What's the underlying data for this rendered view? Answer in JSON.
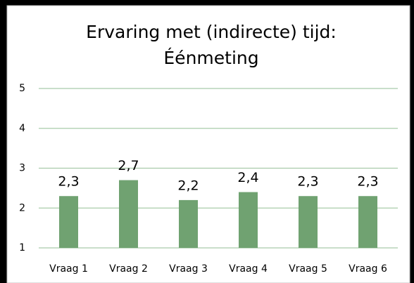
{
  "chart_data": {
    "type": "bar",
    "title": [
      "Ervaring met (indirecte) tijd:",
      "Éénmeting"
    ],
    "categories": [
      "Vraag 1",
      "Vraag 2",
      "Vraag 3",
      "Vraag 4",
      "Vraag 5",
      "Vraag 6"
    ],
    "values": [
      2.3,
      2.7,
      2.2,
      2.4,
      2.3,
      2.3
    ],
    "value_labels": [
      "2,3",
      "2,7",
      "2,2",
      "2,4",
      "2,3",
      "2,3"
    ],
    "color": "#70a271",
    "ylim": [
      1,
      5
    ],
    "yticks": [
      1,
      2,
      3,
      4,
      5
    ],
    "grid": true,
    "grid_color": "#a9cbaa"
  }
}
